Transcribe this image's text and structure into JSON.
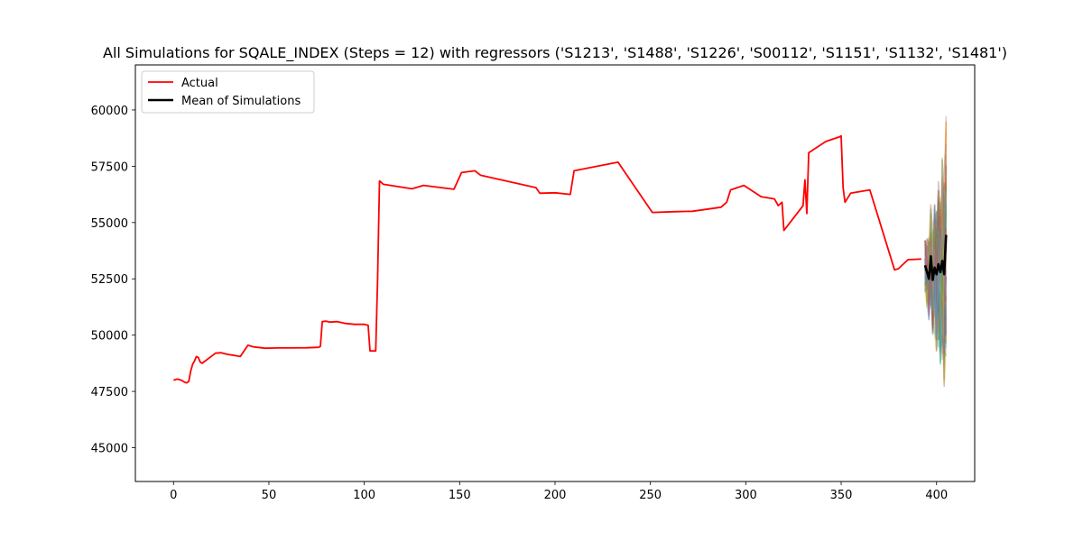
{
  "chart_data": {
    "type": "line",
    "title": "All Simulations for SQALE_INDEX (Steps = 12) with regressors ('S1213', 'S1488', 'S1226', 'S00112', 'S1151', 'S1132', 'S1481')",
    "xlabel": "",
    "ylabel": "",
    "xlim": [
      -20,
      420
    ],
    "ylim": [
      43500,
      62000
    ],
    "xticks": [
      0,
      50,
      100,
      150,
      200,
      250,
      300,
      350,
      400
    ],
    "yticks": [
      45000,
      47500,
      50000,
      52500,
      55000,
      57500,
      60000
    ],
    "grid": false,
    "legend_position": "top-left",
    "legend": [
      "Actual",
      "Mean of Simulations"
    ],
    "series": [
      {
        "name": "Actual",
        "color": "#ff0000",
        "x": [
          0,
          2,
          4,
          6,
          7,
          8,
          9,
          10,
          11,
          12,
          13,
          14,
          15,
          22,
          25,
          28,
          32,
          35,
          39,
          42,
          48,
          55,
          60,
          70,
          76,
          77,
          78,
          80,
          82,
          86,
          90,
          95,
          100,
          102,
          103,
          104,
          106,
          107,
          108,
          110,
          125,
          131,
          147,
          151,
          158,
          161,
          190,
          192,
          200,
          208,
          210,
          233,
          251,
          262,
          272,
          287,
          290,
          292,
          299,
          308,
          315,
          317,
          319,
          320,
          330,
          331,
          332,
          333,
          342,
          349,
          350,
          351,
          352,
          355,
          358,
          365,
          378,
          380,
          385,
          392
        ],
        "y": [
          48000,
          48050,
          48000,
          47900,
          47880,
          47950,
          48400,
          48700,
          48850,
          49050,
          49000,
          48800,
          48750,
          49200,
          49220,
          49150,
          49100,
          49050,
          49550,
          49480,
          49420,
          49430,
          49430,
          49440,
          49460,
          49500,
          50600,
          50620,
          50580,
          50600,
          50520,
          50480,
          50480,
          50440,
          49300,
          49300,
          49300,
          52500,
          56850,
          56700,
          56500,
          56650,
          56480,
          57220,
          57300,
          57100,
          56550,
          56300,
          56320,
          56250,
          57300,
          57680,
          55450,
          55480,
          55500,
          55680,
          55900,
          56450,
          56650,
          56150,
          56050,
          55750,
          55900,
          54650,
          55750,
          56900,
          55400,
          58100,
          58600,
          58800,
          58850,
          56550,
          55900,
          56300,
          56350,
          56450,
          52900,
          52950,
          53350,
          53380
        ]
      },
      {
        "name": "Mean of Simulations",
        "color": "#000000",
        "x": [
          394,
          395,
          396,
          397,
          398,
          399,
          400,
          401,
          402,
          403,
          404,
          405
        ],
        "y": [
          53100,
          52800,
          52500,
          53500,
          52450,
          53000,
          52700,
          53150,
          52800,
          53300,
          52700,
          54450
        ]
      }
    ]
  }
}
